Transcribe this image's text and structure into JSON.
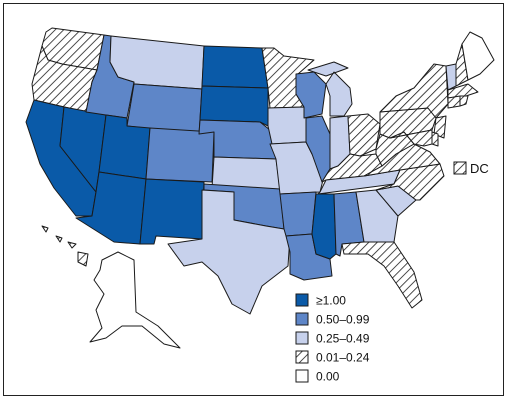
{
  "map": {
    "colors": {
      "ge_1_00": "#0a5aa8",
      "r_0_50_0_99": "#5e86c8",
      "r_0_25_0_49": "#c7d1ec",
      "r_0_01_0_24": "hatch",
      "r_0_00": "#ffffff"
    },
    "legend": [
      {
        "key": "ge_1_00",
        "label": "≥1.00"
      },
      {
        "key": "r_0_50_0_99",
        "label": "0.50–0.99"
      },
      {
        "key": "r_0_25_0_49",
        "label": "0.25–0.49"
      },
      {
        "key": "r_0_01_0_24",
        "label": "0.01–0.24"
      },
      {
        "key": "r_0_00",
        "label": "0.00"
      }
    ],
    "dc": {
      "label": "DC",
      "category": "r_0_01_0_24"
    },
    "states": {
      "WA": "r_0_01_0_24",
      "OR": "r_0_01_0_24",
      "CA": "ge_1_00",
      "NV": "ge_1_00",
      "ID": "r_0_50_0_99",
      "MT": "r_0_25_0_49",
      "WY": "r_0_50_0_99",
      "UT": "ge_1_00",
      "AZ": "ge_1_00",
      "CO": "r_0_50_0_99",
      "NM": "ge_1_00",
      "ND": "ge_1_00",
      "SD": "ge_1_00",
      "NE": "r_0_50_0_99",
      "KS": "r_0_25_0_49",
      "OK": "r_0_50_0_99",
      "TX": "r_0_25_0_49",
      "MN": "r_0_01_0_24",
      "IA": "r_0_25_0_49",
      "MO": "r_0_25_0_49",
      "AR": "r_0_50_0_99",
      "LA": "r_0_50_0_99",
      "WI": "r_0_50_0_99",
      "IL": "r_0_50_0_99",
      "MI": "r_0_25_0_49",
      "IN": "r_0_25_0_49",
      "OH": "r_0_01_0_24",
      "KY": "r_0_01_0_24",
      "TN": "r_0_25_0_49",
      "MS": "ge_1_00",
      "AL": "r_0_50_0_99",
      "GA": "r_0_25_0_49",
      "FL": "r_0_01_0_24",
      "SC": "r_0_25_0_49",
      "NC": "r_0_01_0_24",
      "VA": "r_0_01_0_24",
      "WV": "r_0_01_0_24",
      "PA": "r_0_01_0_24",
      "NY": "r_0_01_0_24",
      "VT": "r_0_25_0_49",
      "NH": "r_0_01_0_24",
      "ME": "r_0_00",
      "MA": "r_0_01_0_24",
      "CT": "r_0_01_0_24",
      "RI": "r_0_01_0_24",
      "NJ": "r_0_01_0_24",
      "DE": "r_0_01_0_24",
      "MD": "r_0_01_0_24",
      "AK": "r_0_00",
      "HI": "r_0_01_0_24"
    }
  }
}
